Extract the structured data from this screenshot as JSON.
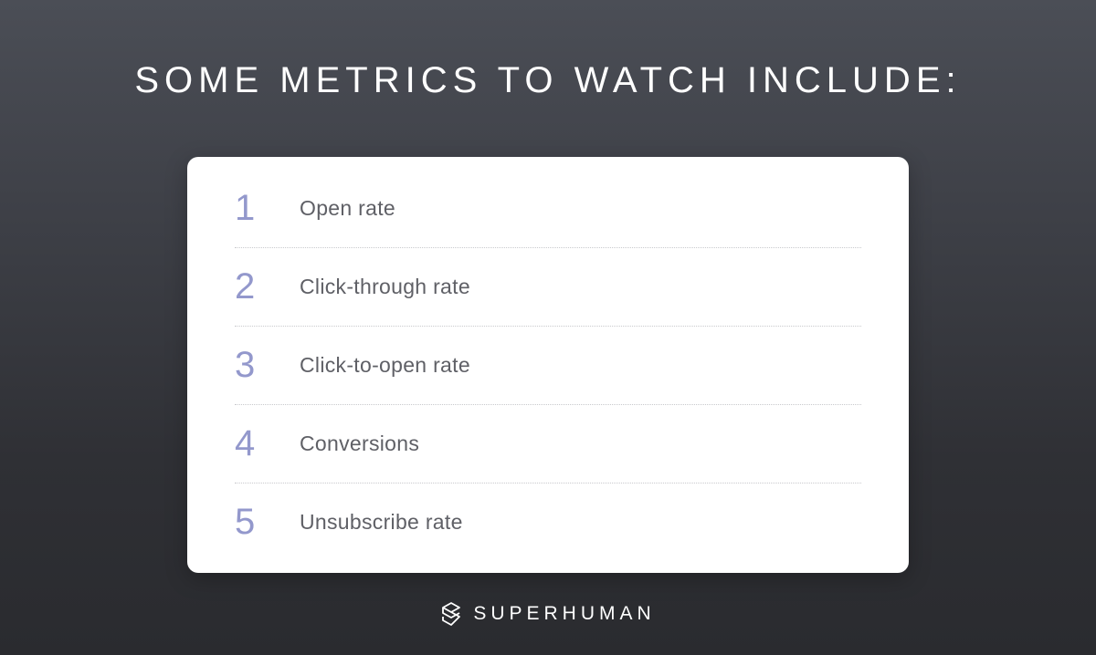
{
  "headline": "SOME METRICS TO WATCH INCLUDE:",
  "metrics": [
    {
      "number": "1",
      "label": "Open rate"
    },
    {
      "number": "2",
      "label": "Click-through rate"
    },
    {
      "number": "3",
      "label": "Click-to-open rate"
    },
    {
      "number": "4",
      "label": "Conversions"
    },
    {
      "number": "5",
      "label": "Unsubscribe rate"
    }
  ],
  "brand": {
    "logo_icon": "superhuman-logo-icon",
    "name": "SUPERHUMAN"
  },
  "colors": {
    "number_accent": "#9398cc",
    "label_text": "#5f6066",
    "card_background": "#ffffff",
    "headline_text": "#ffffff"
  }
}
